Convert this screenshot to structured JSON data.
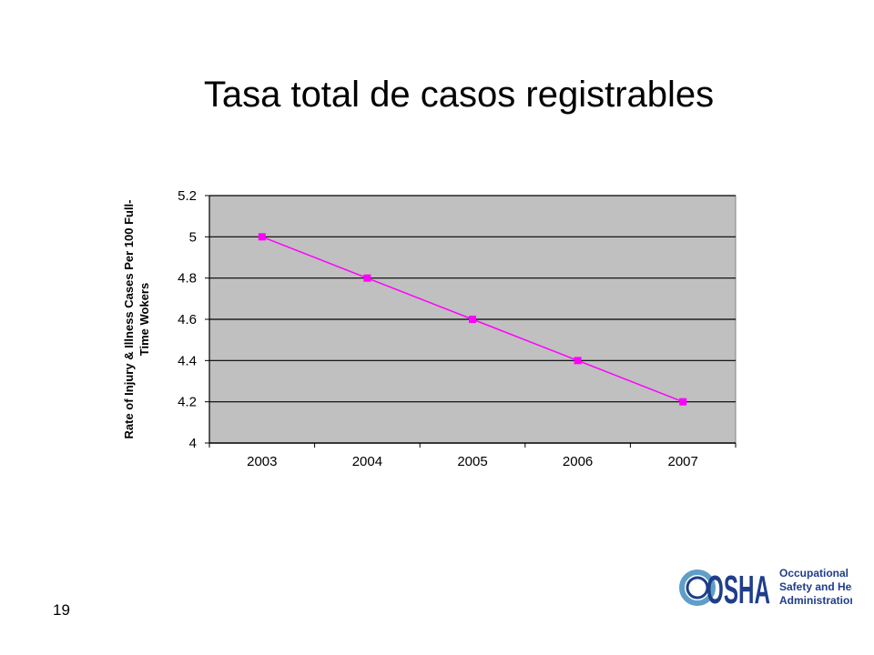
{
  "slide": {
    "title": "Tasa total de casos registrables",
    "page_number": "19"
  },
  "logo": {
    "icon": "osha-logo-icon",
    "word": "OSHA",
    "agency_lines": [
      "Occupational",
      "Safety and Health",
      "Administration"
    ],
    "colors": {
      "word": "#1f3e8a",
      "ring": "#5f9ec8"
    }
  },
  "chart_data": {
    "type": "line",
    "title": "",
    "xlabel": "",
    "ylabel": "Rate of Injury & Illness Cases Per 100 Full-Time Wokers",
    "ylabel_lines": [
      "Rate of Injury & Illness Cases Per 100 Full-",
      "Time Wokers"
    ],
    "categories": [
      "2003",
      "2004",
      "2005",
      "2006",
      "2007"
    ],
    "series": [
      {
        "values": [
          5.0,
          4.8,
          4.6,
          4.4,
          4.2
        ],
        "color": "#ff00ff",
        "marker": "square"
      }
    ],
    "ylim": [
      4,
      5.2
    ],
    "yticks": [
      4,
      4.2,
      4.4,
      4.6,
      4.8,
      5,
      5.2
    ],
    "ytick_labels": [
      "4",
      "4.2",
      "4.4",
      "4.6",
      "4.8",
      "5",
      "5.2"
    ],
    "grid": true,
    "legend": "none",
    "plot_background": "#c0c0c0",
    "gridline_color": "#000000"
  }
}
